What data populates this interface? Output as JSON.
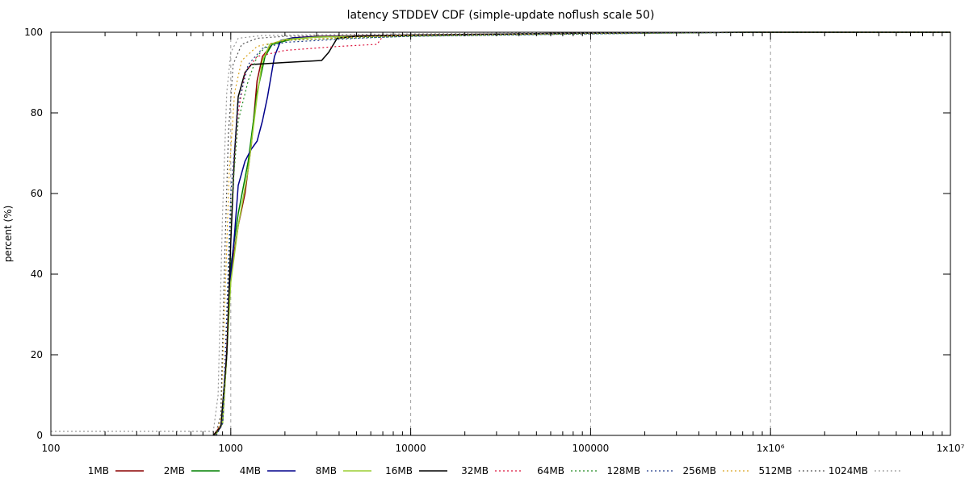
{
  "chart_data": {
    "type": "line",
    "title": "latency STDDEV CDF (simple-update noflush scale 50)",
    "xlabel": "",
    "ylabel": "percent (%)",
    "xscale": "log",
    "xlim": [
      100,
      10000000
    ],
    "ylim": [
      0,
      100
    ],
    "grid": "vertical dashed at decades",
    "legend_position": "bottom",
    "x_ticks": [
      {
        "value": 100,
        "label": "100"
      },
      {
        "value": 1000,
        "label": "1000"
      },
      {
        "value": 10000,
        "label": "10000"
      },
      {
        "value": 100000,
        "label": "100000"
      },
      {
        "value": 1000000,
        "label": "1x10⁶"
      },
      {
        "value": 10000000,
        "label": "1x10⁷"
      }
    ],
    "y_ticks": [
      {
        "value": 0,
        "label": "0"
      },
      {
        "value": 20,
        "label": "20"
      },
      {
        "value": 40,
        "label": "40"
      },
      {
        "value": 60,
        "label": "60"
      },
      {
        "value": 80,
        "label": "80"
      },
      {
        "value": 100,
        "label": "100"
      }
    ],
    "series": [
      {
        "name": "1MB",
        "color": "#8b0000",
        "dash": "solid",
        "points": [
          [
            800,
            0
          ],
          [
            900,
            3
          ],
          [
            950,
            20
          ],
          [
            1000,
            40
          ],
          [
            1100,
            52
          ],
          [
            1200,
            60
          ],
          [
            1300,
            72
          ],
          [
            1400,
            88
          ],
          [
            1500,
            94
          ],
          [
            1700,
            97
          ],
          [
            2200,
            98.6
          ],
          [
            3000,
            99
          ],
          [
            10000,
            99.3
          ],
          [
            100000,
            99.8
          ],
          [
            1000000,
            100
          ],
          [
            10000000,
            100
          ]
        ]
      },
      {
        "name": "2MB",
        "color": "#008000",
        "dash": "solid",
        "points": [
          [
            820,
            0
          ],
          [
            900,
            3
          ],
          [
            950,
            20
          ],
          [
            1000,
            42
          ],
          [
            1100,
            55
          ],
          [
            1250,
            68
          ],
          [
            1400,
            85
          ],
          [
            1550,
            94
          ],
          [
            1700,
            97
          ],
          [
            2200,
            98.3
          ],
          [
            3000,
            98.8
          ],
          [
            10000,
            99.2
          ],
          [
            100000,
            99.8
          ],
          [
            1000000,
            100
          ],
          [
            10000000,
            100
          ]
        ]
      },
      {
        "name": "4MB",
        "color": "#00008b",
        "dash": "solid",
        "points": [
          [
            820,
            0
          ],
          [
            900,
            3
          ],
          [
            960,
            25
          ],
          [
            1000,
            40
          ],
          [
            1050,
            50
          ],
          [
            1100,
            62
          ],
          [
            1200,
            68
          ],
          [
            1300,
            71
          ],
          [
            1400,
            73
          ],
          [
            1500,
            78
          ],
          [
            1600,
            84
          ],
          [
            1750,
            94
          ],
          [
            1900,
            98
          ],
          [
            2200,
            98.6
          ],
          [
            3000,
            98.9
          ],
          [
            10000,
            99.2
          ],
          [
            100000,
            99.8
          ],
          [
            1000000,
            100
          ],
          [
            10000000,
            100
          ]
        ]
      },
      {
        "name": "8MB",
        "color": "#9acd32",
        "dash": "solid",
        "points": [
          [
            820,
            0
          ],
          [
            900,
            3
          ],
          [
            950,
            20
          ],
          [
            1000,
            38
          ],
          [
            1100,
            52
          ],
          [
            1250,
            66
          ],
          [
            1400,
            84
          ],
          [
            1500,
            93
          ],
          [
            1650,
            97
          ],
          [
            2000,
            98.2
          ],
          [
            3000,
            98.8
          ],
          [
            10000,
            99.2
          ],
          [
            100000,
            99.8
          ],
          [
            1000000,
            100
          ],
          [
            10000000,
            100
          ]
        ]
      },
      {
        "name": "16MB",
        "color": "#000000",
        "dash": "solid",
        "points": [
          [
            800,
            0
          ],
          [
            880,
            2
          ],
          [
            950,
            20
          ],
          [
            1000,
            48
          ],
          [
            1050,
            70
          ],
          [
            1100,
            84
          ],
          [
            1200,
            90
          ],
          [
            1300,
            92
          ],
          [
            2000,
            92.5
          ],
          [
            3200,
            93
          ],
          [
            3500,
            95
          ],
          [
            3900,
            98.5
          ],
          [
            5000,
            99
          ],
          [
            10000,
            99.3
          ],
          [
            100000,
            99.8
          ],
          [
            1000000,
            100
          ],
          [
            10000000,
            100
          ]
        ]
      },
      {
        "name": "32MB",
        "color": "#dc143c",
        "dash": "dotted",
        "points": [
          [
            830,
            0
          ],
          [
            900,
            3
          ],
          [
            950,
            25
          ],
          [
            1000,
            55
          ],
          [
            1100,
            80
          ],
          [
            1200,
            90
          ],
          [
            1400,
            94
          ],
          [
            2000,
            95.5
          ],
          [
            4000,
            96.5
          ],
          [
            6500,
            97
          ],
          [
            7000,
            99
          ],
          [
            10000,
            99.3
          ],
          [
            100000,
            99.8
          ],
          [
            1000000,
            100
          ],
          [
            10000000,
            100
          ]
        ]
      },
      {
        "name": "64MB",
        "color": "#228b22",
        "dash": "dotted",
        "points": [
          [
            830,
            0
          ],
          [
            900,
            3
          ],
          [
            950,
            28
          ],
          [
            1000,
            55
          ],
          [
            1100,
            78
          ],
          [
            1250,
            88
          ],
          [
            1400,
            94
          ],
          [
            1600,
            97
          ],
          [
            2000,
            98
          ],
          [
            5000,
            98.6
          ],
          [
            10000,
            99
          ],
          [
            100000,
            99.6
          ],
          [
            1000000,
            100
          ],
          [
            10000000,
            100
          ]
        ]
      },
      {
        "name": "128MB",
        "color": "#1e3a8a",
        "dash": "dotted",
        "points": [
          [
            830,
            0
          ],
          [
            900,
            3
          ],
          [
            950,
            30
          ],
          [
            1000,
            60
          ],
          [
            1100,
            82
          ],
          [
            1250,
            92
          ],
          [
            1500,
            96
          ],
          [
            2000,
            97.5
          ],
          [
            5000,
            98.5
          ],
          [
            10000,
            99
          ],
          [
            100000,
            99.6
          ],
          [
            1000000,
            100
          ],
          [
            10000000,
            100
          ]
        ]
      },
      {
        "name": "256MB",
        "color": "#daa520",
        "dash": "dotted",
        "points": [
          [
            820,
            0
          ],
          [
            880,
            4
          ],
          [
            930,
            35
          ],
          [
            980,
            65
          ],
          [
            1050,
            85
          ],
          [
            1150,
            93
          ],
          [
            1400,
            96.5
          ],
          [
            2000,
            98
          ],
          [
            5000,
            98.8
          ],
          [
            10000,
            99.2
          ],
          [
            100000,
            99.7
          ],
          [
            1000000,
            100
          ],
          [
            10000000,
            100
          ]
        ]
      },
      {
        "name": "512MB",
        "color": "#555555",
        "dash": "dotted",
        "points": [
          [
            820,
            0
          ],
          [
            880,
            5
          ],
          [
            920,
            40
          ],
          [
            970,
            75
          ],
          [
            1030,
            92
          ],
          [
            1150,
            97
          ],
          [
            1400,
            98.5
          ],
          [
            2000,
            99
          ],
          [
            10000,
            99.4
          ],
          [
            100000,
            99.8
          ],
          [
            1000000,
            100
          ],
          [
            10000000,
            100
          ]
        ]
      },
      {
        "name": "1024MB",
        "color": "#999999",
        "dash": "dotted",
        "points": [
          [
            100,
            1
          ],
          [
            800,
            1
          ],
          [
            850,
            10
          ],
          [
            900,
            55
          ],
          [
            950,
            85
          ],
          [
            1000,
            95
          ],
          [
            1100,
            98.5
          ],
          [
            1500,
            99.2
          ],
          [
            10000,
            99.6
          ],
          [
            100000,
            99.9
          ],
          [
            1000000,
            100
          ],
          [
            10000000,
            100
          ]
        ]
      }
    ]
  }
}
